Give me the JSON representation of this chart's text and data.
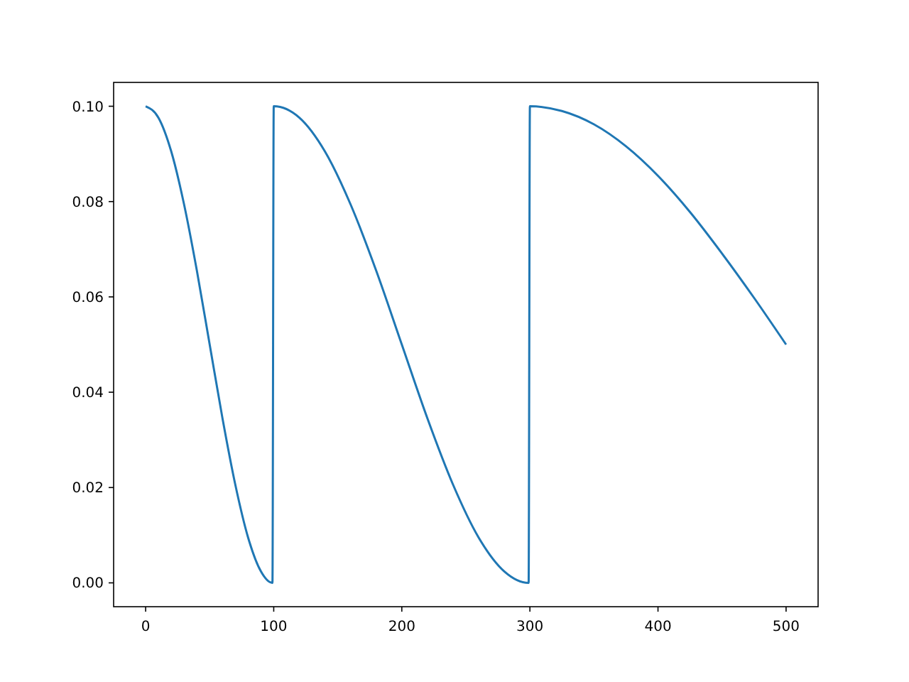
{
  "chart_data": {
    "type": "line",
    "x": [
      0,
      10,
      20,
      30,
      40,
      50,
      60,
      70,
      80,
      90,
      99,
      100,
      120,
      140,
      160,
      180,
      200,
      220,
      240,
      260,
      280,
      299,
      300,
      325,
      350,
      375,
      400,
      425,
      450,
      475,
      500
    ],
    "series": [
      {
        "color": "#1f77b4",
        "values": [
          0.1,
          0.0976,
          0.0905,
          0.0794,
          0.0655,
          0.05,
          0.0345,
          0.0206,
          0.0095,
          0.0024,
          0.0,
          0.1,
          0.0976,
          0.0905,
          0.0794,
          0.0655,
          0.05,
          0.0345,
          0.0206,
          0.0095,
          0.0024,
          0.0,
          0.1,
          0.099,
          0.0962,
          0.0916,
          0.0854,
          0.0778,
          0.0691,
          0.0598,
          0.05
        ]
      }
    ],
    "xlim": [
      -25,
      525
    ],
    "xticks": [
      0,
      100,
      200,
      300,
      400,
      500
    ],
    "ylim": [
      -0.005,
      0.105
    ],
    "yticks": [
      {
        "value": 0,
        "label": "0.00"
      },
      {
        "value": 0.02,
        "label": "0.02"
      },
      {
        "value": 0.04,
        "label": "0.04"
      },
      {
        "value": 0.06,
        "label": "0.06"
      },
      {
        "value": 0.08,
        "label": "0.08"
      },
      {
        "value": 0.1,
        "label": "0.10"
      }
    ]
  }
}
